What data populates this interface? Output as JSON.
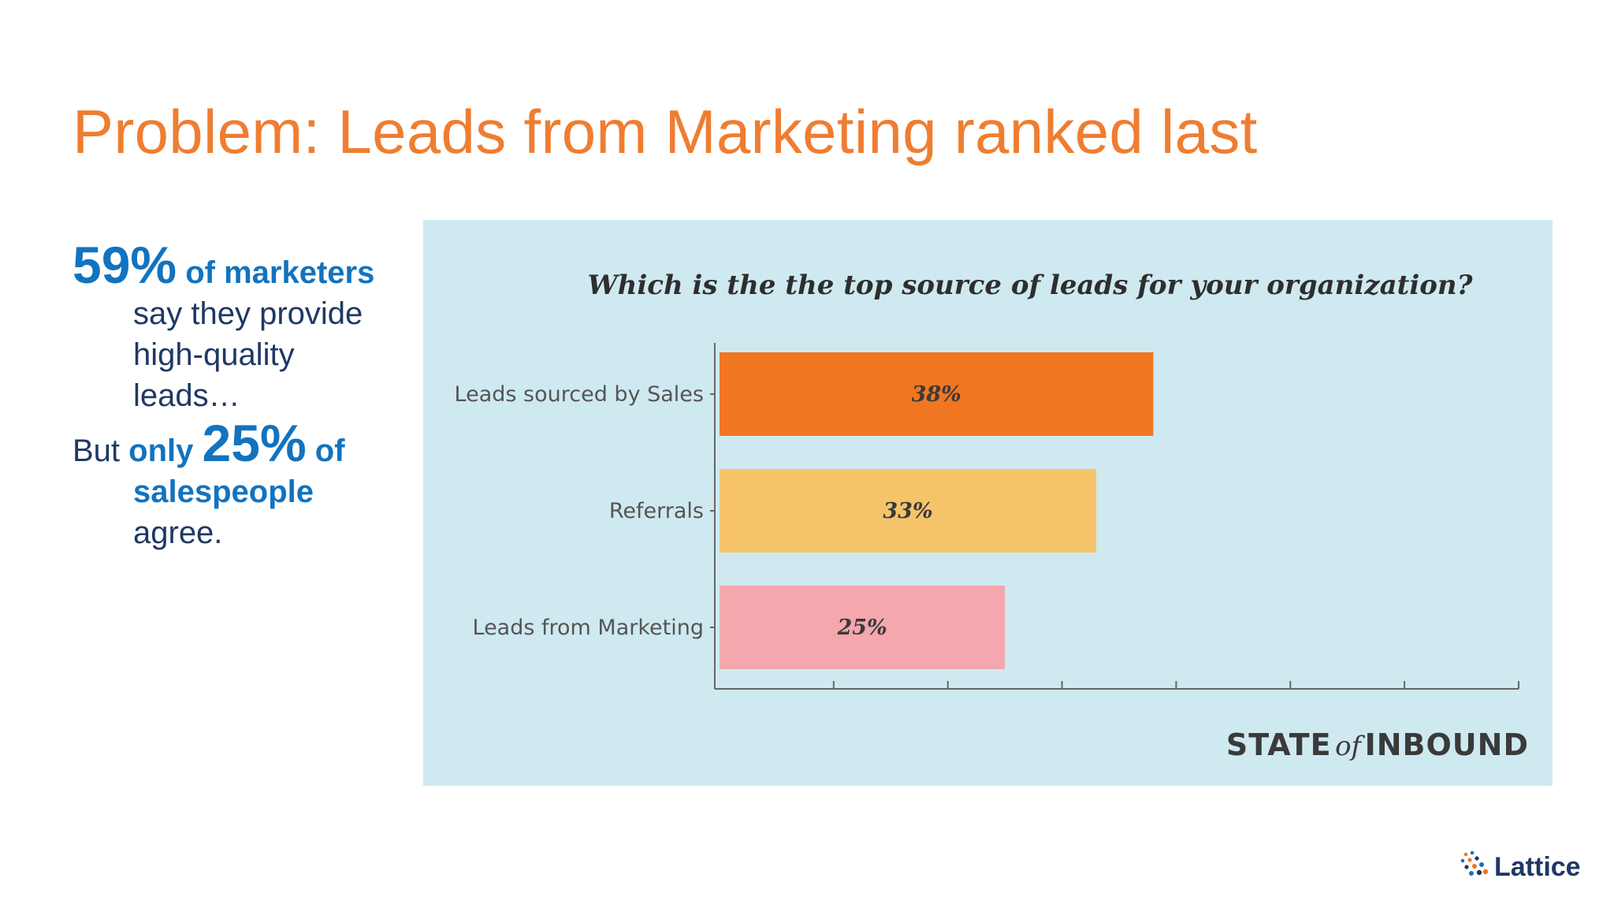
{
  "title": "Problem: Leads from Marketing ranked last",
  "stats": {
    "line1_pct": "59%",
    "line1_rest": "of marketers",
    "line2": "say they provide",
    "line3": "high-quality",
    "line4": "leads…",
    "line5_pre": "But",
    "line5_only": "only",
    "line5_pct": "25%",
    "line5_of": "of",
    "line6": "salespeople",
    "line7": "agree."
  },
  "chart_data": {
    "type": "bar",
    "orientation": "horizontal",
    "title": "Which is the the top source of leads for your organization?",
    "categories": [
      "Leads sourced by Sales",
      "Referrals",
      "Leads from Marketing"
    ],
    "values": [
      38,
      33,
      25
    ],
    "value_labels": [
      "38%",
      "33%",
      "25%"
    ],
    "colors": [
      "#f07622",
      "#f5c46a",
      "#f4a7ad"
    ],
    "xlim": [
      0,
      70
    ],
    "x_ticks": [
      10,
      20,
      30,
      40,
      50,
      60
    ],
    "grid": false,
    "legend": "none",
    "xlabel": "",
    "ylabel": ""
  },
  "source": {
    "part1": "STATE",
    "part2": "of",
    "part3": "INBOUND"
  },
  "brand": {
    "name": "Lattice"
  }
}
